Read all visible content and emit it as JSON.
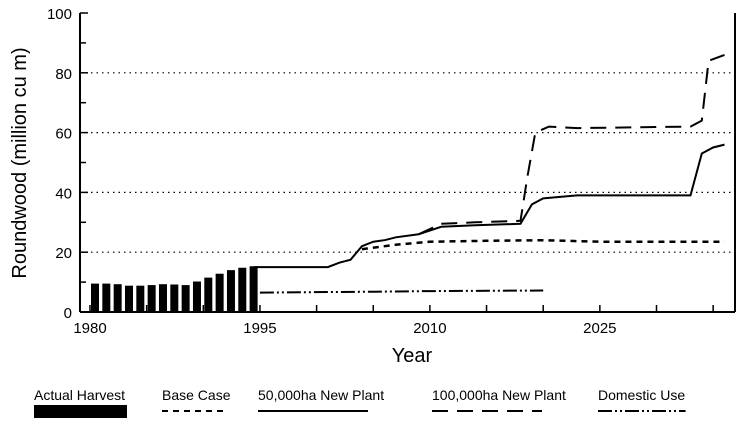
{
  "chart_data": {
    "type": "line",
    "title": "",
    "xlabel": "Year",
    "ylabel": "Roundwood (million cu m)",
    "xlim": [
      1979,
      2036.5
    ],
    "ylim": [
      0,
      100
    ],
    "xticks": [
      1980,
      1995,
      2010,
      2025
    ],
    "yticks": [
      0,
      20,
      40,
      60,
      80,
      100
    ],
    "grid": "horizontal dotted at 20,40,60,80",
    "legend": "bottom",
    "bars": {
      "name": "Actual Harvest",
      "x": [
        1980,
        1981,
        1982,
        1983,
        1984,
        1985,
        1986,
        1987,
        1988,
        1989,
        1990,
        1991,
        1992,
        1993,
        1994
      ],
      "values": [
        9.5,
        9.5,
        9.3,
        8.8,
        8.8,
        9,
        9.3,
        9.2,
        9,
        10.2,
        11.5,
        12.8,
        14,
        14.8,
        15.3
      ]
    },
    "series": [
      {
        "name": "Base Case",
        "style": "dash-short",
        "x": [
          2004,
          2007,
          2010,
          2015,
          2020,
          2025,
          2036
        ],
        "values": [
          21,
          22.5,
          23.5,
          23.8,
          24,
          23.5,
          23.5
        ]
      },
      {
        "name": "50,000ha New Plant",
        "style": "solid",
        "x": [
          1994.5,
          1998,
          2001,
          2002,
          2003,
          2004,
          2005,
          2006,
          2007,
          2009,
          2011,
          2014,
          2018,
          2019,
          2020,
          2023,
          2033,
          2034,
          2035,
          2036
        ],
        "values": [
          15,
          15,
          15,
          16.5,
          17.5,
          22,
          23.5,
          24,
          25,
          26,
          28.5,
          29,
          29.5,
          36,
          38,
          39,
          39,
          53,
          55,
          56
        ]
      },
      {
        "name": "100,000ha New Plant",
        "style": "dash-long",
        "x": [
          2009,
          2011,
          2014,
          2018,
          2018.6,
          2019.3,
          2020.5,
          2023,
          2033,
          2034,
          2034.6,
          2036
        ],
        "values": [
          26,
          29.5,
          30,
          30.5,
          45,
          60,
          62,
          61.5,
          62,
          64,
          84,
          86
        ]
      },
      {
        "name": "Domestic Use",
        "style": "dash-dot-dot",
        "x": [
          1995,
          2005,
          2010,
          2020
        ],
        "values": [
          6.5,
          6.8,
          7,
          7.2
        ]
      }
    ]
  }
}
